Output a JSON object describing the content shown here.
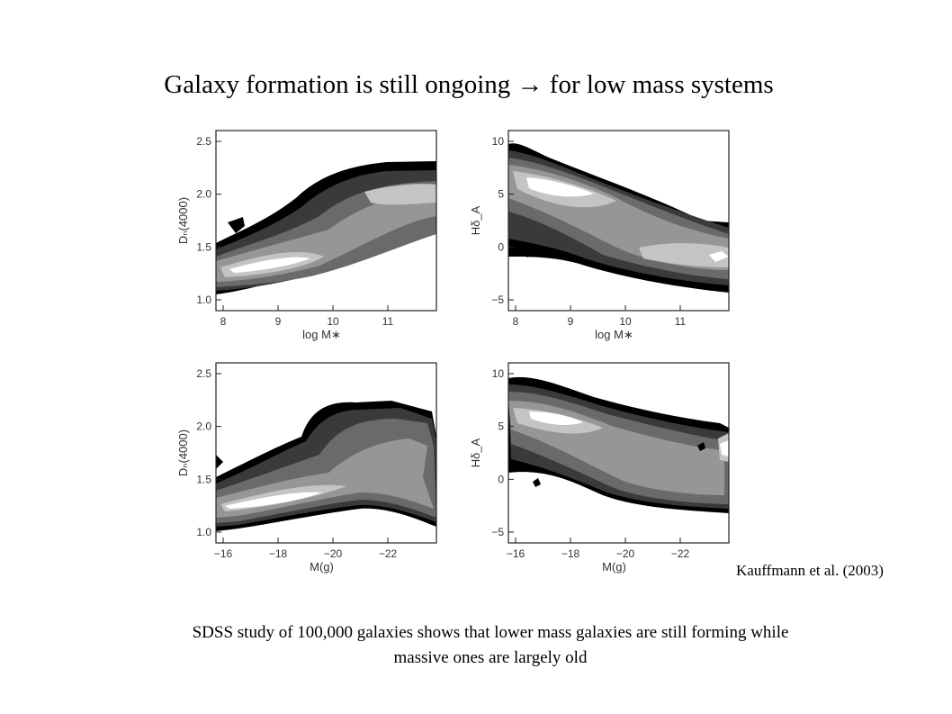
{
  "slide": {
    "title": "Galaxy formation is still ongoing → for low mass systems",
    "citation": "Kauffmann et al. (2003)",
    "caption_line1": "SDSS study of 100,000 galaxies shows that lower mass galaxies are still forming while",
    "caption_line2": "massive ones are largely old"
  },
  "figure": {
    "panels": [
      {
        "ylabel": "Dₙ(4000)",
        "xlabel": "log M∗",
        "yticks": [
          "1.0",
          "1.5",
          "2.0",
          "2.5"
        ],
        "xticks": [
          "8",
          "9",
          "10",
          "11"
        ]
      },
      {
        "ylabel": "Hδ_A",
        "xlabel": "log M∗",
        "yticks": [
          "−5",
          "0",
          "5",
          "10"
        ],
        "xticks": [
          "8",
          "9",
          "10",
          "11"
        ]
      },
      {
        "ylabel": "Dₙ(4000)",
        "xlabel": "M(g)",
        "yticks": [
          "1.0",
          "1.5",
          "2.0",
          "2.5"
        ],
        "xticks": [
          "−16",
          "−18",
          "−20",
          "−22"
        ]
      },
      {
        "ylabel": "Hδ_A",
        "xlabel": "M(g)",
        "yticks": [
          "−5",
          "0",
          "5",
          "10"
        ],
        "xticks": [
          "−16",
          "−18",
          "−20",
          "−22"
        ]
      }
    ],
    "contour_colors": [
      "#000000",
      "#3a3a3a",
      "#6a6a6a",
      "#969696",
      "#c4c4c4",
      "#ffffff"
    ]
  }
}
